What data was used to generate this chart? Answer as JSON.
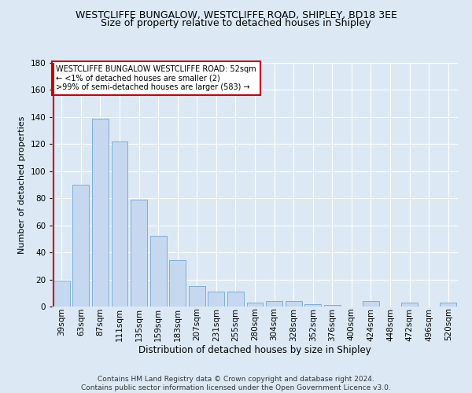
{
  "title": "WESTCLIFFE BUNGALOW, WESTCLIFFE ROAD, SHIPLEY, BD18 3EE",
  "subtitle": "Size of property relative to detached houses in Shipley",
  "xlabel": "Distribution of detached houses by size in Shipley",
  "ylabel": "Number of detached properties",
  "footer1": "Contains HM Land Registry data © Crown copyright and database right 2024.",
  "footer2": "Contains public sector information licensed under the Open Government Licence v3.0.",
  "annotation_line1": "WESTCLIFFE BUNGALOW WESTCLIFFE ROAD: 52sqm",
  "annotation_line2": "← <1% of detached houses are smaller (2)",
  "annotation_line3": ">99% of semi-detached houses are larger (583) →",
  "bar_labels": [
    "39sqm",
    "63sqm",
    "87sqm",
    "111sqm",
    "135sqm",
    "159sqm",
    "183sqm",
    "207sqm",
    "231sqm",
    "255sqm",
    "280sqm",
    "304sqm",
    "328sqm",
    "352sqm",
    "376sqm",
    "400sqm",
    "424sqm",
    "448sqm",
    "472sqm",
    "496sqm",
    "520sqm"
  ],
  "bar_values": [
    19,
    90,
    139,
    122,
    79,
    52,
    34,
    15,
    11,
    11,
    3,
    4,
    4,
    2,
    1,
    0,
    4,
    0,
    3,
    0,
    3
  ],
  "bar_color": "#c5d8f0",
  "bar_edge_color": "#7bafd4",
  "highlight_color": "#cc0000",
  "bg_color": "#dce9f5",
  "grid_color": "#ffffff",
  "annotation_box_facecolor": "#ffffff",
  "annotation_box_edgecolor": "#cc0000",
  "ylim": [
    0,
    180
  ],
  "yticks": [
    0,
    20,
    40,
    60,
    80,
    100,
    120,
    140,
    160,
    180
  ],
  "title_fontsize": 9,
  "subtitle_fontsize": 9,
  "ylabel_fontsize": 8,
  "xlabel_fontsize": 8.5,
  "tick_fontsize": 7.5,
  "annot_fontsize": 7,
  "footer_fontsize": 6.5
}
